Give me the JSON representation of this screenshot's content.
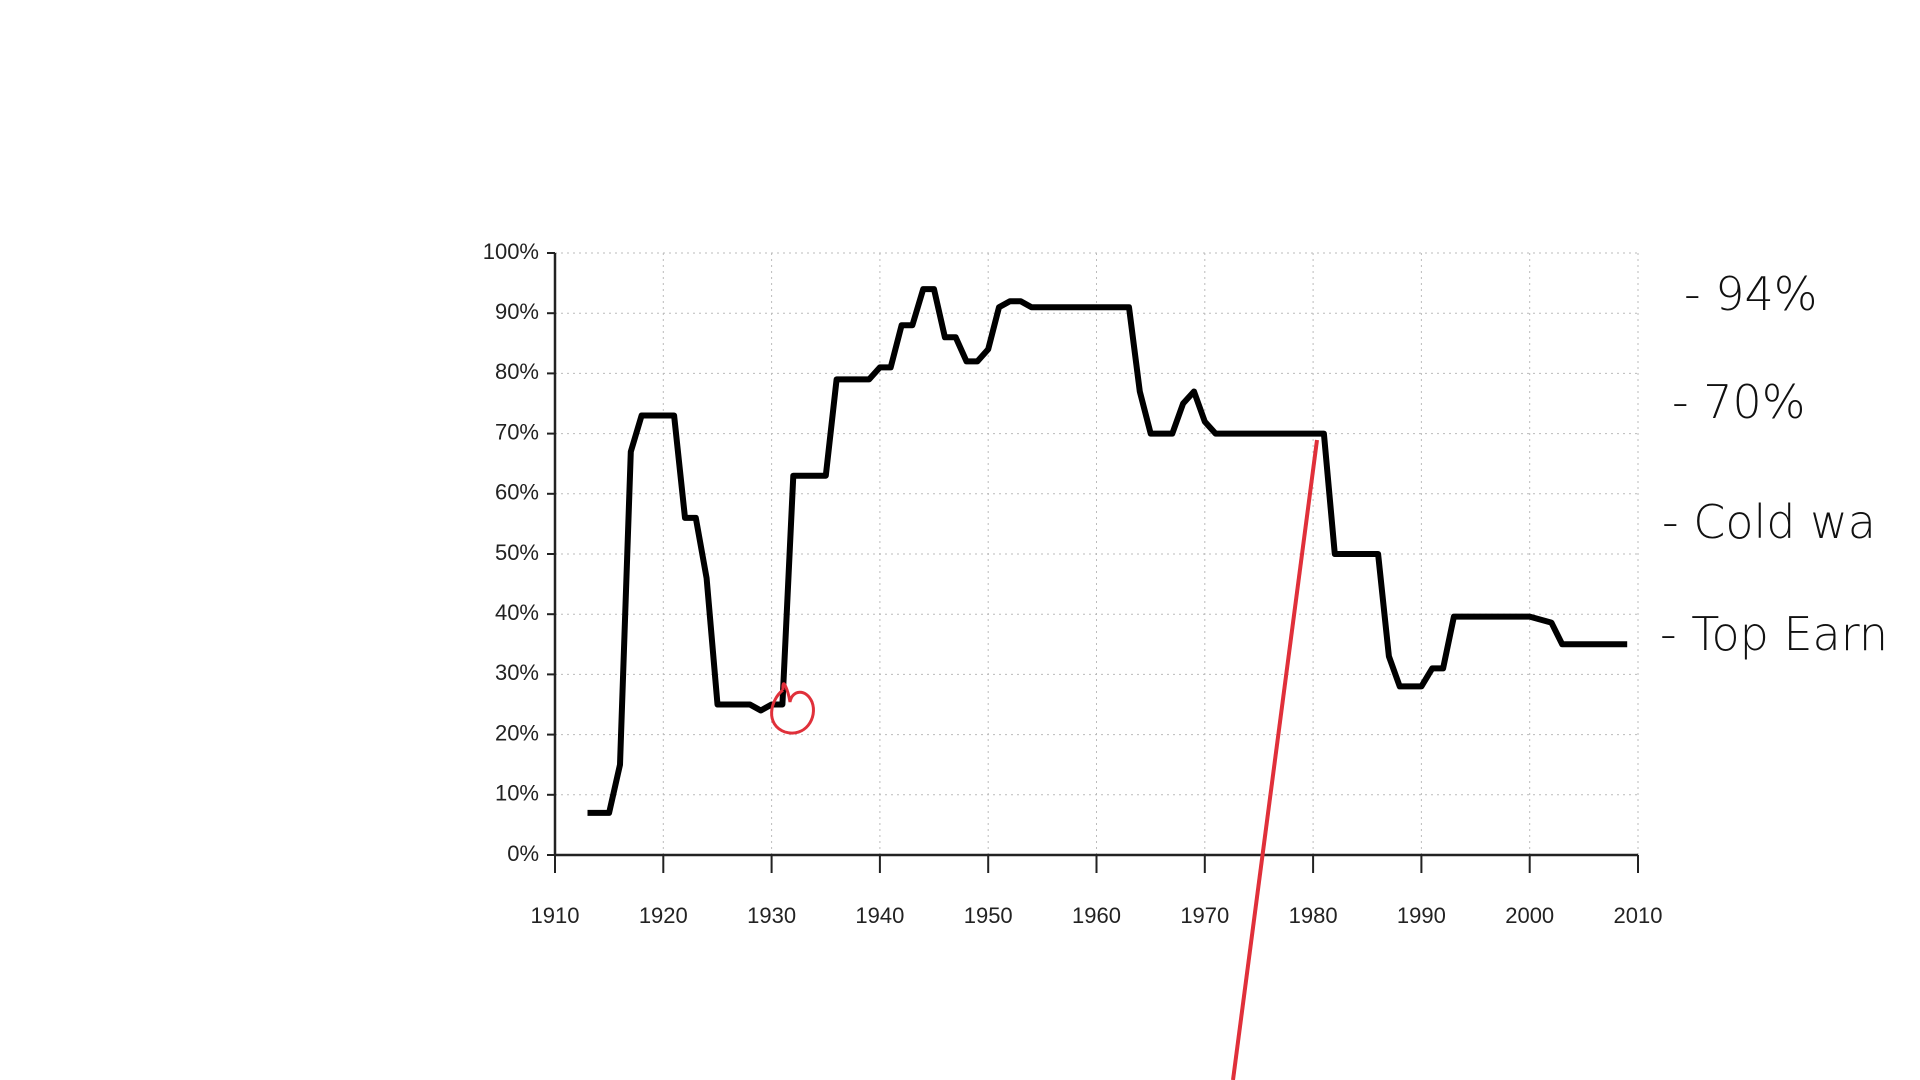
{
  "chart_data": {
    "type": "line",
    "x": [
      1913,
      1915,
      1916,
      1917,
      1918,
      1921,
      1922,
      1923,
      1924,
      1925,
      1928,
      1929,
      1930,
      1931,
      1932,
      1935,
      1936,
      1939,
      1940,
      1941,
      1942,
      1943,
      1944,
      1945,
      1946,
      1947,
      1948,
      1949,
      1950,
      1951,
      1952,
      1953,
      1954,
      1963,
      1964,
      1965,
      1967,
      1968,
      1969,
      1970,
      1971,
      1981,
      1982,
      1986,
      1987,
      1988,
      1990,
      1991,
      1992,
      1993,
      2000,
      2001,
      2002,
      2003,
      2009
    ],
    "values": [
      7,
      7,
      15,
      67,
      73,
      73,
      56,
      56,
      46,
      25,
      25,
      24,
      25,
      25,
      63,
      63,
      79,
      79,
      81,
      81,
      88,
      88,
      94,
      94,
      86,
      86,
      82,
      82,
      84,
      91,
      92,
      92,
      91,
      91,
      77,
      70,
      70,
      75,
      77,
      72,
      70,
      70,
      50,
      50,
      33,
      28,
      28,
      31,
      31,
      39.6,
      39.6,
      39.1,
      38.6,
      35,
      35
    ],
    "color": "#000000",
    "xlim": [
      1910,
      2010
    ],
    "xticks": [
      1910,
      1920,
      1930,
      1940,
      1950,
      1960,
      1970,
      1980,
      1990,
      2000,
      2010
    ],
    "ylim": [
      0,
      100
    ],
    "yticks": [
      {
        "value": 0,
        "label": "0%"
      },
      {
        "value": 10,
        "label": "10%"
      },
      {
        "value": 20,
        "label": "20%"
      },
      {
        "value": 30,
        "label": "30%"
      },
      {
        "value": 40,
        "label": "40%"
      },
      {
        "value": 50,
        "label": "50%"
      },
      {
        "value": 60,
        "label": "60%"
      },
      {
        "value": 70,
        "label": "70%"
      },
      {
        "value": 80,
        "label": "80%"
      },
      {
        "value": 90,
        "label": "90%"
      },
      {
        "value": 100,
        "label": "100%"
      }
    ],
    "grid": true,
    "annotations": [
      "- 94%",
      "- 70%",
      "- Cold wa",
      "- Top Earn"
    ]
  }
}
